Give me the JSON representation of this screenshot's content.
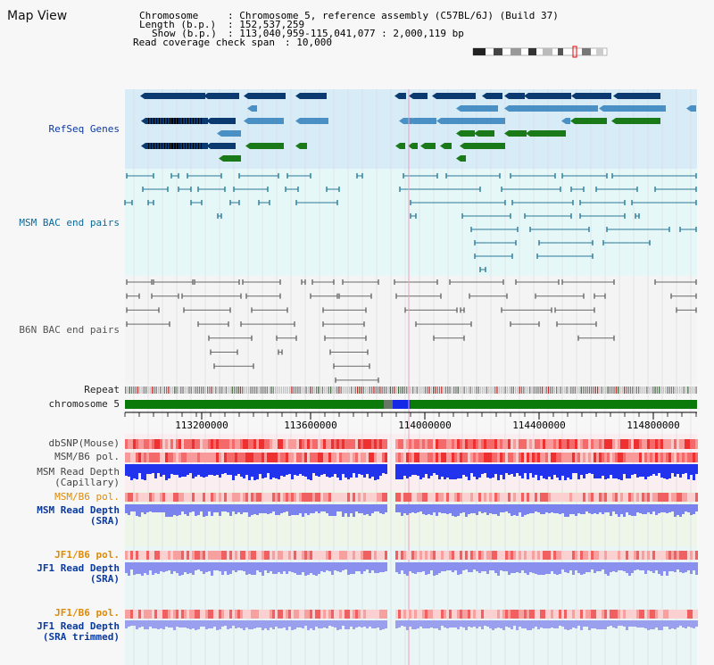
{
  "app": {
    "title": "Map View"
  },
  "header": {
    "chromosome_key": "Chromosome",
    "chromosome_val": ": Chromosome 5, reference assembly (C57BL/6J) (Build 37)",
    "length_key": "Length (b.p.)",
    "length_val": ": 152,537,259",
    "show_key": "Show (b.p.)",
    "show_val": ": 113,040,959-115,041,077 : 2,000,119 bp",
    "coverage_key": "Read coverage check span",
    "coverage_val": ": 10,000"
  },
  "tracks": {
    "refseq": "RefSeq Genes",
    "msm_bac": "MSM BAC end pairs",
    "b6n_bac": "B6N BAC end pairs",
    "repeat": "Repeat",
    "chromosome": "chromosome 5",
    "dbsnp": "dbSNP(Mouse)",
    "msm_b6_pol_1": "MSM/B6 pol.",
    "msm_depth_cap_1": "MSM Read Depth",
    "msm_depth_cap_2": "(Capillary)",
    "msm_b6_pol_2": "MSM/B6 pol.",
    "msm_depth_sra_1": "MSM Read Depth",
    "msm_depth_sra_2": "(SRA)",
    "jf1_b6_pol_1": "JF1/B6 pol.",
    "jf1_depth_sra_1": "JF1 Read Depth",
    "jf1_depth_sra_2": "(SRA)",
    "jf1_b6_pol_2": "JF1/B6 pol.",
    "jf1_depth_trim_1": "JF1 Read Depth",
    "jf1_depth_trim_2": "(SRA trimmed)"
  },
  "axis": {
    "ticks": [
      "113200000",
      "113600000",
      "114000000",
      "114400000",
      "114800000"
    ]
  },
  "colors": {
    "refseq_dark": "#0a3a70",
    "refseq_light": "#4a90c4",
    "gene_green": "#1a7a1a",
    "bac_teal": "#2a7a9a",
    "bac_gray": "#6a6a6a",
    "chrom_green": "#0b7a0b",
    "depth_blue": "#2233ee",
    "sra_blue": "#7a82ee",
    "pol_red": "#ee3333",
    "pol_label_orange": "#e08a00",
    "label_blue": "#0a3aa0",
    "label_teal": "#0a6a9a"
  }
}
